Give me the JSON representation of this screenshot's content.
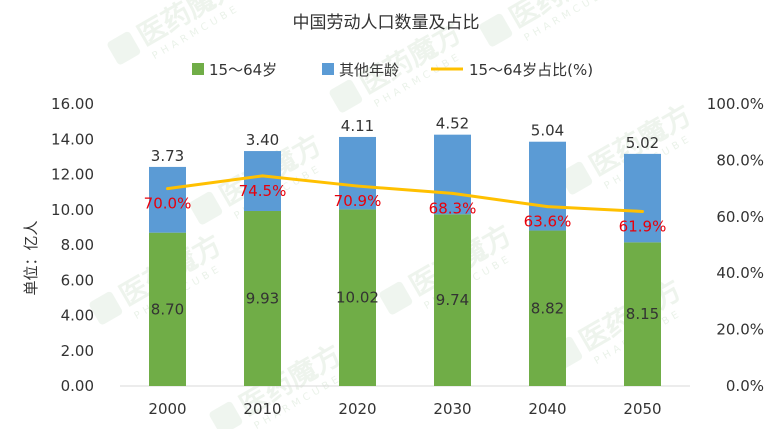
{
  "watermark": {
    "brand": "医药魔方",
    "sub": "PHARMCUBE"
  },
  "chart_data": {
    "type": "bar",
    "stacked": true,
    "title": "中国劳动人口数量及占比",
    "ylabel": "单位：亿人",
    "y2label": "",
    "categories": [
      "2000",
      "2010",
      "2020",
      "2030",
      "2040",
      "2050"
    ],
    "ylim": [
      0,
      16
    ],
    "yticks": [
      "0.00",
      "2.00",
      "4.00",
      "6.00",
      "8.00",
      "10.00",
      "12.00",
      "14.00",
      "16.00"
    ],
    "y2lim": [
      0,
      100
    ],
    "y2ticks": [
      "0.0%",
      "20.0%",
      "40.0%",
      "60.0%",
      "80.0%",
      "100.0%"
    ],
    "grid": false,
    "legend_position": "top",
    "series": [
      {
        "name": "15～64岁",
        "type": "bar",
        "color": "#70ad47",
        "values": [
          8.7,
          9.93,
          10.02,
          9.74,
          8.82,
          8.15
        ],
        "labels": [
          "8.70",
          "9.93",
          "10.02",
          "9.74",
          "8.82",
          "8.15"
        ]
      },
      {
        "name": "其他年龄",
        "type": "bar",
        "color": "#5b9bd5",
        "values": [
          3.73,
          3.4,
          4.11,
          4.52,
          5.04,
          5.02
        ],
        "labels": [
          "3.73",
          "3.40",
          "4.11",
          "4.52",
          "5.04",
          "5.02"
        ]
      },
      {
        "name": "15～64岁占比(%)",
        "type": "line",
        "axis": "right",
        "color": "#ffc000",
        "label_color": "#e8000b",
        "values": [
          70.0,
          74.5,
          70.9,
          68.3,
          63.6,
          61.9
        ],
        "labels": [
          "70.0%",
          "74.5%",
          "70.9%",
          "68.3%",
          "63.6%",
          "61.9%"
        ]
      }
    ]
  }
}
